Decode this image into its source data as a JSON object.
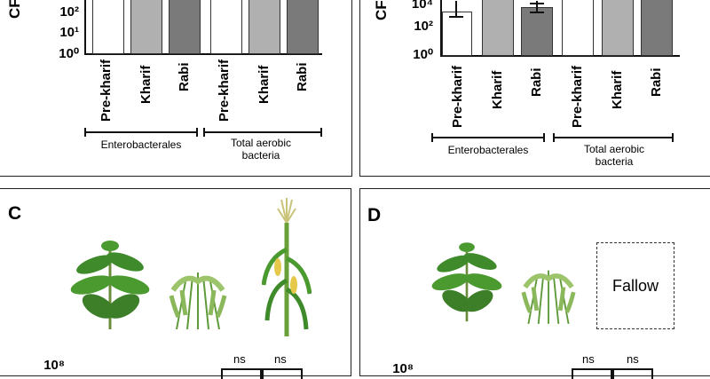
{
  "panels": {
    "A": {
      "ylabel": "CF",
      "ticks": [
        "10²",
        "10¹",
        "10⁰"
      ],
      "xlabels": [
        "Pre-kharif",
        "Kharif",
        "Rabi",
        "Pre-kharif",
        "Kharif",
        "Rabi"
      ],
      "groups": [
        "Enterobacterales",
        "Total aerobic bacteria"
      ]
    },
    "B": {
      "ylabel": "CF",
      "ticks": [
        "10⁴",
        "10²",
        "10⁰"
      ],
      "xlabels": [
        "Pre-kharif",
        "Kharif",
        "Rabi",
        "Pre-kharif",
        "Kharif",
        "Rabi"
      ],
      "groups": [
        "Enterobacterales",
        "Total aerobic bacteria"
      ]
    },
    "C": {
      "letter": "C",
      "tick_top": "10⁸",
      "ns": [
        "ns",
        "ns"
      ]
    },
    "D": {
      "letter": "D",
      "tick_top": "10⁸",
      "ns": [
        "ns",
        "ns"
      ],
      "fallow_label": "Fallow"
    }
  },
  "colors": {
    "white_bar": "#ffffff",
    "light_bar": "#b0b0b0",
    "dark_bar": "#7a7a7a",
    "leaf": "#3f8a2a",
    "grain": "#9cc46a"
  },
  "chart_data": [
    {
      "type": "bar",
      "categories": [
        "Pre-kharif",
        "Kharif",
        "Rabi",
        "Pre-kharif",
        "Kharif",
        "Rabi"
      ],
      "groups": [
        "Enterobacterales",
        "Total aerobic bacteria"
      ],
      "ylabel": "CF",
      "yscale": "log",
      "visible_ticks": [
        "10⁰",
        "10¹",
        "10²"
      ],
      "note": "bars extend beyond the cropped top of the image"
    },
    {
      "type": "bar",
      "categories": [
        "Pre-kharif",
        "Kharif",
        "Rabi",
        "Pre-kharif",
        "Kharif",
        "Rabi"
      ],
      "groups": [
        "Enterobacterales",
        "Total aerobic bacteria"
      ],
      "ylabel": "CF",
      "yscale": "log",
      "visible_ticks": [
        "10⁰",
        "10²",
        "10⁴"
      ],
      "values_log10": [
        3.3,
        null,
        3.7,
        null,
        null,
        null
      ],
      "note": "most bars extend beyond the cropped top of the image"
    }
  ]
}
